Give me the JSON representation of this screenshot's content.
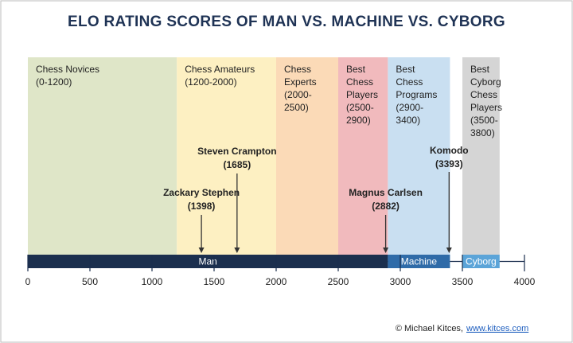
{
  "chart_data": {
    "type": "range",
    "title": "ELO RATING SCORES OF MAN VS. MACHINE VS. CYBORG",
    "credit": "© Michael Kitces,",
    "credit_link": "www.kitces.com",
    "xlim": [
      0,
      4000
    ],
    "xticks": [
      0,
      500,
      1000,
      1500,
      2000,
      2500,
      3000,
      3500,
      4000
    ],
    "bands": [
      {
        "label": [
          "Chess Novices",
          "(0-1200)"
        ],
        "start": 0,
        "end": 1200,
        "color": "#dfe6c8"
      },
      {
        "label": [
          "Chess Amateurs",
          "(1200-2000)"
        ],
        "start": 1200,
        "end": 2000,
        "color": "#fdf0c2"
      },
      {
        "label": [
          "Chess",
          "Experts",
          "(2000-",
          "2500)"
        ],
        "start": 2000,
        "end": 2500,
        "color": "#fbdab7"
      },
      {
        "label": [
          "Best",
          "Chess",
          "Players",
          "(2500-",
          "2900)"
        ],
        "start": 2500,
        "end": 2900,
        "color": "#f1babd"
      },
      {
        "label": [
          "Best",
          "Chess",
          "Programs",
          "(2900-",
          "3400)"
        ],
        "start": 2900,
        "end": 3400,
        "color": "#c9dff1"
      },
      {
        "label": [
          "Best",
          "Cyborg",
          "Chess",
          "Players",
          "(3500-",
          "3800)"
        ],
        "start": 3500,
        "end": 3800,
        "color": "#d5d5d5"
      }
    ],
    "markers": [
      {
        "name": "Zackary Stephen",
        "value": 1398,
        "value_label": "(1398)"
      },
      {
        "name": "Steven Crampton",
        "value": 1685,
        "value_label": "(1685)"
      },
      {
        "name": "Magnus Carlsen",
        "value": 2882,
        "value_label": "(2882)"
      },
      {
        "name": "Komodo",
        "value": 3393,
        "value_label": "(3393)"
      }
    ],
    "segments": [
      {
        "name": "Man",
        "start": 0,
        "end": 2900,
        "color": "#1b2f4e"
      },
      {
        "name": "Machine",
        "start": 2900,
        "end": 3400,
        "color": "#2f6ba8"
      },
      {
        "name": "Cyborg",
        "start": 3500,
        "end": 3800,
        "color": "#5ba4d8"
      }
    ]
  }
}
